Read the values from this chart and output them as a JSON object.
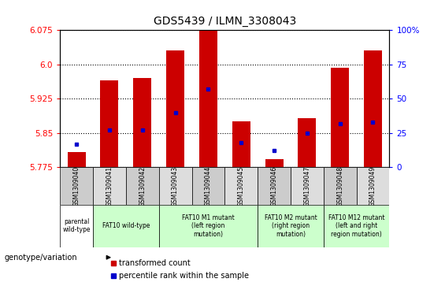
{
  "title": "GDS5439 / ILMN_3308043",
  "samples": [
    "GSM1309040",
    "GSM1309041",
    "GSM1309042",
    "GSM1309043",
    "GSM1309044",
    "GSM1309045",
    "GSM1309046",
    "GSM1309047",
    "GSM1309048",
    "GSM1309049"
  ],
  "transformed_counts": [
    5.808,
    5.965,
    5.97,
    6.03,
    6.075,
    5.875,
    5.793,
    5.882,
    5.992,
    6.03
  ],
  "percentile_ranks": [
    17,
    27,
    27,
    40,
    57,
    18,
    12,
    25,
    32,
    33
  ],
  "y_min": 5.775,
  "y_max": 6.075,
  "y_ticks": [
    5.775,
    5.85,
    5.925,
    6.0,
    6.075
  ],
  "y2_ticks": [
    0,
    25,
    50,
    75,
    100
  ],
  "bar_color": "#cc0000",
  "dot_color": "#0000cc",
  "bar_width": 0.55,
  "group_configs": [
    {
      "indices": [
        0
      ],
      "label": "parental\nwild-type",
      "color": "#ffffff"
    },
    {
      "indices": [
        1,
        2
      ],
      "label": "FAT10 wild-type",
      "color": "#ccffcc"
    },
    {
      "indices": [
        3,
        4,
        5
      ],
      "label": "FAT10 M1 mutant\n(left region\nmutation)",
      "color": "#ccffcc"
    },
    {
      "indices": [
        6,
        7
      ],
      "label": "FAT10 M2 mutant\n(right region\nmutation)",
      "color": "#ccffcc"
    },
    {
      "indices": [
        8,
        9
      ],
      "label": "FAT10 M12 mutant\n(left and right\nregion mutation)",
      "color": "#ccffcc"
    }
  ],
  "sample_box_color": "#cccccc",
  "legend_items": [
    {
      "label": "transformed count",
      "color": "#cc0000",
      "marker": "s"
    },
    {
      "label": "percentile rank within the sample",
      "color": "#0000cc",
      "marker": "s"
    }
  ]
}
